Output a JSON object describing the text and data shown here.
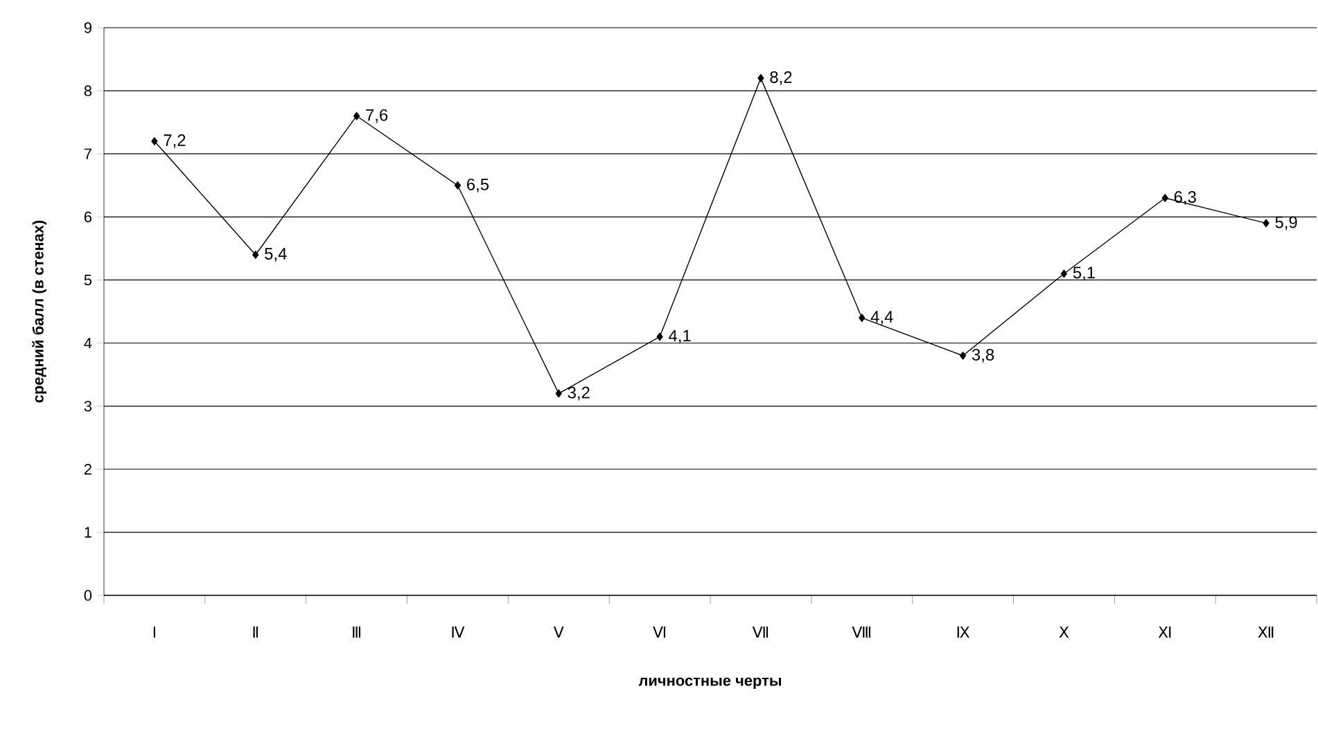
{
  "chart_data": {
    "type": "line",
    "xlabel": "личностные черты",
    "ylabel": "средний балл (в стенах)",
    "categories": [
      "I",
      "Ⅱ",
      "Ⅲ",
      "Ⅳ",
      "V",
      "Ⅵ",
      "Ⅶ",
      "Ⅷ",
      "Ⅸ",
      "X",
      "Ⅺ",
      "Ⅻ"
    ],
    "values": [
      7.2,
      5.4,
      7.6,
      6.5,
      3.2,
      4.1,
      8.2,
      4.4,
      3.8,
      5.1,
      6.3,
      5.9
    ],
    "value_labels": [
      "7,2",
      "5,4",
      "7,6",
      "6,5",
      "3,2",
      "4,1",
      "8,2",
      "4,4",
      "3,8",
      "5,1",
      "6,3",
      "5,9"
    ],
    "color": "#000000",
    "marker": "diamond",
    "line_style": "solid",
    "grid": "y",
    "ylim": [
      0,
      9
    ],
    "yticks": [
      0,
      1,
      2,
      3,
      4,
      5,
      6,
      7,
      8,
      9
    ]
  }
}
